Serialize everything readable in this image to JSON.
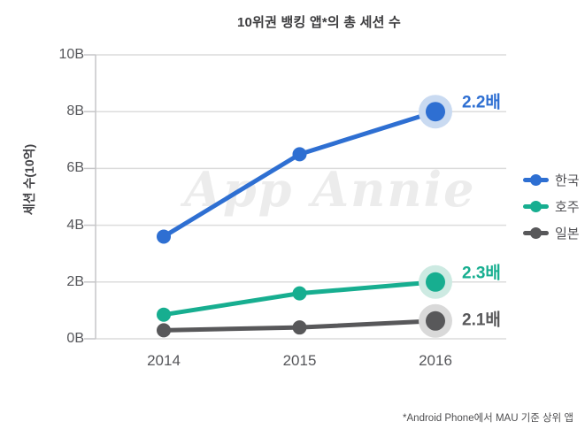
{
  "title": "10위권 뱅킹 앱*의 총 세션 수",
  "y_axis_title": "세션 수(10억)",
  "watermark": "App Annie",
  "footnote": "*Android Phone에서 MAU 기준 상위 앱",
  "colors": {
    "background": "#ffffff",
    "gridline": "#dcdcdc",
    "axis_line": "#c6c6c8",
    "title_text": "#3c3c3e",
    "axis_title_text": "#434347",
    "tick_text": "#55565a",
    "legend_text": "#515155",
    "watermark_text": "#ececec",
    "footnote_text": "#4f4f51"
  },
  "chart_data": {
    "type": "line",
    "categories": [
      "2014",
      "2015",
      "2016"
    ],
    "y_tick_labels": [
      "0B",
      "2B",
      "4B",
      "6B",
      "8B",
      "10B"
    ],
    "ylim": [
      0,
      10
    ],
    "grid": true,
    "legend_position": "right",
    "series": [
      {
        "name": "한국",
        "color": "#2e6fd2",
        "halo_color": "#c9daf1",
        "values": [
          3.6,
          6.5,
          8.0
        ],
        "end_label": "2.2배",
        "end_label_offset_y": -12
      },
      {
        "name": "호주",
        "color": "#17ae90",
        "halo_color": "#cdeae2",
        "values": [
          0.85,
          1.6,
          2.0
        ],
        "end_label": "2.3배",
        "end_label_offset_y": -12
      },
      {
        "name": "일본",
        "color": "#58585a",
        "halo_color": "#d9d9d9",
        "values": [
          0.3,
          0.4,
          0.63
        ],
        "end_label": "2.1배",
        "end_label_offset_y": -3
      }
    ]
  }
}
